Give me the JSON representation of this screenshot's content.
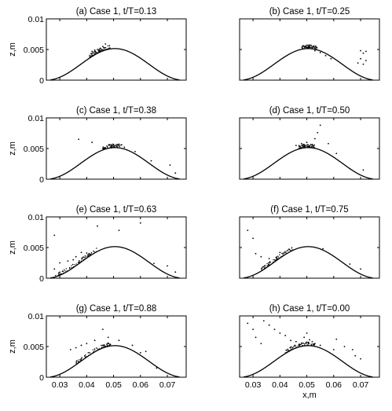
{
  "chart_data": [
    {
      "type": "scatter",
      "title": "(a) Case 1, t/T=0.13",
      "xlabel": "",
      "ylabel": "z,m",
      "xlim": [
        0.025,
        0.077
      ],
      "ylim": [
        0,
        0.01
      ],
      "xticks": [],
      "yticks": [
        "0",
        "0.005",
        "0.01"
      ],
      "scatter": [
        [
          0.042,
          0.0047
        ],
        [
          0.043,
          0.0049
        ],
        [
          0.044,
          0.005
        ],
        [
          0.045,
          0.0052
        ],
        [
          0.046,
          0.0055
        ],
        [
          0.047,
          0.0059
        ]
      ]
    },
    {
      "type": "scatter",
      "title": "(b) Case 1, t/T=0.25",
      "xlabel": "",
      "ylabel": "",
      "xlim": [
        0.025,
        0.077
      ],
      "ylim": [
        0,
        0.01
      ],
      "xticks": [],
      "yticks": [],
      "scatter": [
        [
          0.053,
          0.0048
        ],
        [
          0.055,
          0.0045
        ],
        [
          0.057,
          0.004
        ],
        [
          0.059,
          0.0035
        ],
        [
          0.069,
          0.0028
        ],
        [
          0.07,
          0.0035
        ],
        [
          0.071,
          0.0044
        ],
        [
          0.072,
          0.0047
        ],
        [
          0.07,
          0.0048
        ],
        [
          0.072,
          0.0032
        ],
        [
          0.071,
          0.0026
        ]
      ]
    },
    {
      "type": "scatter",
      "title": "(c) Case 1, t/T=0.38",
      "xlabel": "",
      "ylabel": "z,m",
      "xlim": [
        0.025,
        0.077
      ],
      "ylim": [
        0,
        0.01
      ],
      "xticks": [],
      "yticks": [
        "0",
        "0.005",
        "0.01"
      ],
      "scatter": [
        [
          0.037,
          0.0065
        ],
        [
          0.042,
          0.006
        ],
        [
          0.051,
          0.0055
        ],
        [
          0.052,
          0.0057
        ],
        [
          0.053,
          0.0056
        ],
        [
          0.054,
          0.0052
        ],
        [
          0.058,
          0.0045
        ],
        [
          0.064,
          0.003
        ],
        [
          0.071,
          0.0023
        ],
        [
          0.073,
          0.001
        ]
      ]
    },
    {
      "type": "scatter",
      "title": "(d) Case 1, t/T=0.50",
      "xlabel": "",
      "ylabel": "",
      "xlim": [
        0.025,
        0.077
      ],
      "ylim": [
        0,
        0.01
      ],
      "xticks": [],
      "yticks": [],
      "scatter": [
        [
          0.046,
          0.0055
        ],
        [
          0.048,
          0.0058
        ],
        [
          0.049,
          0.0056
        ],
        [
          0.05,
          0.006
        ],
        [
          0.053,
          0.0066
        ],
        [
          0.054,
          0.0076
        ],
        [
          0.055,
          0.0088
        ],
        [
          0.058,
          0.0058
        ],
        [
          0.061,
          0.0042
        ],
        [
          0.066,
          0.0017
        ],
        [
          0.071,
          0.0015
        ]
      ]
    },
    {
      "type": "scatter",
      "title": "(e) Case 1, t/T=0.63",
      "xlabel": "",
      "ylabel": "z,m",
      "xlim": [
        0.025,
        0.077
      ],
      "ylim": [
        0,
        0.01
      ],
      "xticks": [],
      "yticks": [
        "0",
        "0.005",
        "0.01"
      ],
      "scatter": [
        [
          0.028,
          0.0015
        ],
        [
          0.03,
          0.0025
        ],
        [
          0.033,
          0.0028
        ],
        [
          0.035,
          0.003
        ],
        [
          0.036,
          0.0035
        ],
        [
          0.038,
          0.0042
        ],
        [
          0.04,
          0.0041
        ],
        [
          0.044,
          0.0085
        ],
        [
          0.052,
          0.0078
        ],
        [
          0.065,
          0.0024
        ],
        [
          0.07,
          0.002
        ],
        [
          0.073,
          0.001
        ],
        [
          0.028,
          0.007
        ],
        [
          0.06,
          0.009
        ]
      ]
    },
    {
      "type": "scatter",
      "title": "(f) Case 1, t/T=0.75",
      "xlabel": "",
      "ylabel": "",
      "xlim": [
        0.025,
        0.077
      ],
      "ylim": [
        0,
        0.01
      ],
      "xticks": [],
      "yticks": [],
      "scatter": [
        [
          0.028,
          0.0078
        ],
        [
          0.03,
          0.0065
        ],
        [
          0.031,
          0.004
        ],
        [
          0.033,
          0.0035
        ],
        [
          0.036,
          0.0032
        ],
        [
          0.04,
          0.0042
        ],
        [
          0.056,
          0.0048
        ],
        [
          0.066,
          0.0023
        ],
        [
          0.07,
          0.0015
        ]
      ]
    },
    {
      "type": "scatter",
      "title": "(g) Case 1, t/T=0.88",
      "xlabel": "",
      "ylabel": "z,m",
      "xlim": [
        0.025,
        0.077
      ],
      "ylim": [
        0,
        0.01
      ],
      "xticks": [
        "0.03",
        "0.04",
        "0.05",
        "0.06",
        "0.07"
      ],
      "yticks": [
        "0",
        "0.005",
        "0.01"
      ],
      "scatter": [
        [
          0.034,
          0.0045
        ],
        [
          0.036,
          0.0048
        ],
        [
          0.038,
          0.0052
        ],
        [
          0.04,
          0.0055
        ],
        [
          0.043,
          0.006
        ],
        [
          0.046,
          0.0078
        ],
        [
          0.048,
          0.0065
        ],
        [
          0.052,
          0.006
        ],
        [
          0.057,
          0.0052
        ],
        [
          0.06,
          0.004
        ],
        [
          0.062,
          0.0042
        ],
        [
          0.066,
          0.0015
        ]
      ]
    },
    {
      "type": "scatter",
      "title": "(h) Case 1, t/T=0.00",
      "xlabel": "x,m",
      "ylabel": "",
      "xlim": [
        0.025,
        0.077
      ],
      "ylim": [
        0,
        0.01
      ],
      "xticks": [
        "0.03",
        "0.04",
        "0.05",
        "0.06",
        "0.07"
      ],
      "yticks": [],
      "scatter": [
        [
          0.028,
          0.0088
        ],
        [
          0.03,
          0.0078
        ],
        [
          0.031,
          0.0065
        ],
        [
          0.033,
          0.0055
        ],
        [
          0.034,
          0.0092
        ],
        [
          0.036,
          0.0085
        ],
        [
          0.038,
          0.0078
        ],
        [
          0.04,
          0.0072
        ],
        [
          0.042,
          0.0068
        ],
        [
          0.044,
          0.006
        ],
        [
          0.046,
          0.0058
        ],
        [
          0.048,
          0.0055
        ],
        [
          0.049,
          0.0065
        ],
        [
          0.05,
          0.0072
        ],
        [
          0.051,
          0.0061
        ],
        [
          0.052,
          0.0058
        ],
        [
          0.053,
          0.0055
        ],
        [
          0.055,
          0.0052
        ],
        [
          0.06,
          0.0045
        ],
        [
          0.064,
          0.005
        ],
        [
          0.068,
          0.0035
        ],
        [
          0.07,
          0.003
        ],
        [
          0.067,
          0.0045
        ],
        [
          0.061,
          0.0062
        ]
      ]
    }
  ]
}
